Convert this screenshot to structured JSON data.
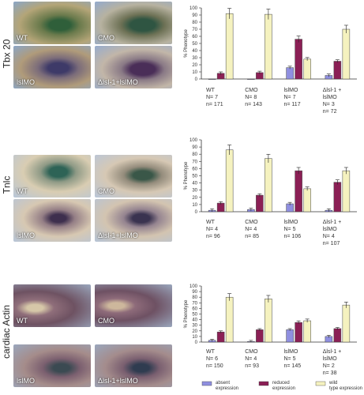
{
  "rows": [
    {
      "label": "Tbx 20",
      "photos": [
        "WT",
        "CMO",
        "lslMO",
        "Δlsl-1+lslMO"
      ]
    },
    {
      "label": "Tnlc",
      "photos": [
        "WT",
        "CMO",
        "lslMO",
        "Δlsl-1+lslMO"
      ]
    },
    {
      "label": "cardiac Actin",
      "photos": [
        "WT",
        "CMO",
        "lslMO",
        "Δlsl-1+lslMO"
      ]
    }
  ],
  "legend": [
    {
      "label": "absent expression",
      "color": "#8f8fe0"
    },
    {
      "label": "reduced expression",
      "color": "#8b1f55"
    },
    {
      "label": "wild type expression",
      "color": "#f5f2bf"
    }
  ],
  "chart_data": [
    {
      "type": "bar",
      "ylabel": "% Phenotype",
      "ylim": [
        0,
        100
      ],
      "yticks": [
        0,
        10,
        20,
        30,
        40,
        50,
        60,
        70,
        80,
        90,
        100
      ],
      "groups": [
        {
          "lines": [
            "WT",
            "N= 7",
            "n= 171"
          ],
          "values": [
            0,
            8,
            92
          ]
        },
        {
          "lines": [
            "CMO",
            "N= 8",
            "n= 143"
          ],
          "values": [
            0,
            9,
            91
          ]
        },
        {
          "lines": [
            "lslMO",
            "N= 7",
            "n= 117"
          ],
          "values": [
            16,
            56,
            28
          ]
        },
        {
          "lines": [
            "Δlsl-1 +",
            "lslMO",
            "N= 3",
            "n= 72"
          ],
          "values": [
            5,
            25,
            70
          ]
        }
      ]
    },
    {
      "type": "bar",
      "ylabel": "% Phenotype",
      "ylim": [
        0,
        100
      ],
      "yticks": [
        0,
        10,
        20,
        30,
        40,
        50,
        60,
        70,
        80,
        90,
        100
      ],
      "groups": [
        {
          "lines": [
            "WT",
            "N= 4",
            "n= 96"
          ],
          "values": [
            2,
            12,
            86
          ]
        },
        {
          "lines": [
            "CMO",
            "N= 4",
            "n= 85"
          ],
          "values": [
            3,
            23,
            74
          ]
        },
        {
          "lines": [
            "lslMO",
            "N= 5",
            "n= 106"
          ],
          "values": [
            11,
            57,
            32
          ]
        },
        {
          "lines": [
            "Δlsl-1 +",
            "lslMO",
            "N= 4",
            "n= 107"
          ],
          "values": [
            2,
            41,
            57
          ]
        }
      ]
    },
    {
      "type": "bar",
      "ylabel": "% Phenotype",
      "ylim": [
        0,
        100
      ],
      "yticks": [
        0,
        10,
        20,
        30,
        40,
        50,
        60,
        70,
        80,
        90,
        100
      ],
      "groups": [
        {
          "lines": [
            "WT",
            "N= 6",
            "n= 150"
          ],
          "values": [
            3,
            18,
            80
          ]
        },
        {
          "lines": [
            "CMO",
            "N= 4",
            "n= 93"
          ],
          "values": [
            1,
            22,
            77
          ]
        },
        {
          "lines": [
            "lslMO",
            "N= 5",
            "n= 145"
          ],
          "values": [
            22,
            35,
            38
          ]
        },
        {
          "lines": [
            "Δlsl-1 +",
            "lslMO",
            "N= 2",
            "n= 38"
          ],
          "values": [
            10,
            24,
            66
          ]
        }
      ]
    }
  ]
}
